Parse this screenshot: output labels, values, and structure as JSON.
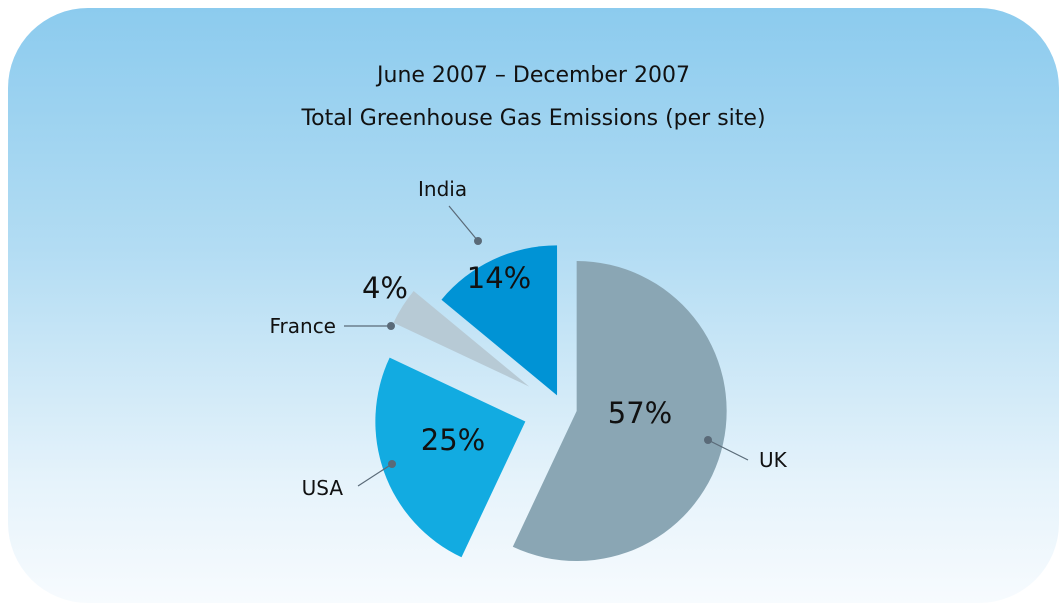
{
  "title_line1": "June 2007 – December 2007",
  "title_line2": "Total Greenhouse Gas Emissions (per site)",
  "chart_data": {
    "type": "pie",
    "title": "June 2007 – December 2007 Total Greenhouse Gas Emissions (per site)",
    "exploded": true,
    "slices": [
      {
        "label": "UK",
        "value": 57,
        "value_label": "57%",
        "color": "#8aa6b4"
      },
      {
        "label": "USA",
        "value": 25,
        "value_label": "25%",
        "color": "#12abe1"
      },
      {
        "label": "France",
        "value": 4,
        "value_label": "4%",
        "color": "#b7cad5"
      },
      {
        "label": "India",
        "value": 14,
        "value_label": "14%",
        "color": "#0093d5"
      }
    ]
  }
}
